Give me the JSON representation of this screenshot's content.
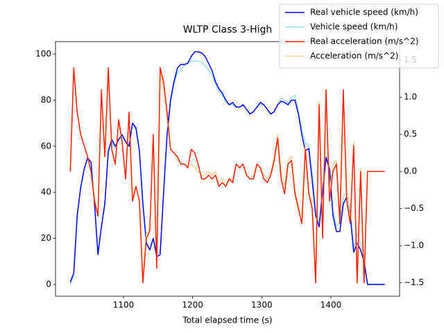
{
  "chart_data": {
    "type": "line",
    "title": "WLTP Class 3-High",
    "xlabel": "Total elapsed time (s)",
    "x": [
      1023,
      1028,
      1033,
      1038,
      1043,
      1048,
      1053,
      1058,
      1063,
      1068,
      1073,
      1078,
      1083,
      1088,
      1093,
      1098,
      1103,
      1108,
      1113,
      1118,
      1123,
      1128,
      1133,
      1138,
      1143,
      1148,
      1153,
      1158,
      1163,
      1168,
      1173,
      1178,
      1183,
      1188,
      1193,
      1198,
      1203,
      1208,
      1213,
      1218,
      1223,
      1228,
      1233,
      1238,
      1243,
      1248,
      1253,
      1258,
      1263,
      1268,
      1273,
      1278,
      1283,
      1288,
      1293,
      1298,
      1303,
      1308,
      1313,
      1318,
      1323,
      1328,
      1333,
      1338,
      1343,
      1348,
      1353,
      1358,
      1363,
      1368,
      1373,
      1378,
      1383,
      1388,
      1393,
      1398,
      1403,
      1408,
      1413,
      1418,
      1423,
      1428,
      1433,
      1438,
      1443,
      1448,
      1453,
      1458,
      1463,
      1468,
      1473,
      1478
    ],
    "xlim": [
      1001.6,
      1499.4
    ],
    "xticks": [
      1100,
      1200,
      1300,
      1400
    ],
    "ylim": [
      -5.1,
      105.4
    ],
    "yticks": [
      0,
      20,
      40,
      60,
      80,
      100
    ],
    "y2lim": [
      -1.68,
      1.75
    ],
    "y2ticks": [
      {
        "value": -1.5,
        "label": "−1.5"
      },
      {
        "value": -1,
        "label": "−1.0"
      },
      {
        "value": -0.5,
        "label": "−0.5"
      },
      {
        "value": 0,
        "label": "0.0"
      },
      0.5,
      {
        "value": 1,
        "label": "1.0"
      },
      1.5
    ],
    "legend": "upper right",
    "series": [
      {
        "name": "Real vehicle speed (km/h)",
        "color": "#0000ff",
        "values": [
          1,
          5,
          30,
          42,
          50,
          55,
          53,
          35,
          13,
          25,
          35,
          58,
          63,
          60,
          63,
          65,
          62,
          60,
          70,
          68,
          58,
          35,
          18,
          15,
          20,
          12,
          13,
          40,
          65,
          80,
          88,
          94,
          95.5,
          95.5,
          96,
          99,
          101,
          101,
          100.5,
          99,
          96,
          93,
          88,
          85,
          83,
          80,
          78,
          79,
          77,
          77,
          78,
          76,
          74,
          75,
          77,
          79,
          78,
          76,
          74,
          75,
          78,
          79.5,
          79,
          78,
          80,
          80,
          74,
          65,
          58,
          59,
          45,
          30,
          25,
          40,
          55,
          50,
          30,
          23,
          23,
          35,
          38,
          30,
          14,
          18,
          15,
          10,
          0,
          0,
          0,
          0,
          0,
          0
        ]
      },
      {
        "name": "Vehicle speed (km/h)",
        "color": "#94e2e8",
        "values": [
          0,
          4,
          29,
          42,
          50,
          55,
          53,
          36,
          14,
          25,
          36,
          57,
          62,
          59,
          62,
          64,
          62,
          61,
          70,
          67,
          58,
          36,
          19,
          15,
          20,
          13,
          14,
          40,
          64,
          79,
          87,
          92,
          93,
          95,
          96,
          97,
          97,
          97,
          96.5,
          95,
          93,
          91,
          87,
          84,
          82,
          79,
          78,
          78,
          77,
          77,
          78,
          76,
          74,
          75,
          77,
          78,
          78,
          76,
          74,
          75,
          78,
          81,
          80,
          79,
          81,
          82,
          75,
          67,
          62,
          60,
          48,
          32,
          27,
          42,
          56,
          52,
          32,
          25,
          27,
          38,
          40,
          32,
          16,
          22,
          18,
          12,
          0,
          0,
          0,
          0,
          0,
          0
        ]
      },
      {
        "name": "Real acceleration (m/s^2)",
        "color": "#ff2000",
        "axis": "y2",
        "values": [
          0,
          1.4,
          0.8,
          0.5,
          0.35,
          0.2,
          0,
          -0.4,
          -0.6,
          1.1,
          0.2,
          1.4,
          0.3,
          0.1,
          0.7,
          0.4,
          -0.1,
          0.8,
          -0.4,
          -0.2,
          -0.4,
          -1.5,
          -0.9,
          -0.8,
          0.5,
          -1.3,
          1.4,
          1.2,
          0.8,
          0.3,
          0.25,
          0.2,
          0.1,
          0.1,
          0.05,
          0.3,
          0.25,
          0.1,
          -0.1,
          -0.1,
          -0.05,
          -0.1,
          -0.05,
          -0.2,
          -0.15,
          -0.2,
          -0.1,
          -0.15,
          0.1,
          0.05,
          0.1,
          -0.05,
          -0.1,
          -0.1,
          0.1,
          0.05,
          -0.1,
          -0.15,
          -0.05,
          0.15,
          0.45,
          -0.1,
          -0.3,
          0.1,
          0.15,
          -0.3,
          -0.5,
          -0.7,
          0.3,
          -0.3,
          -0.5,
          -1.5,
          0.9,
          -0.9,
          1.1,
          -0.4,
          0,
          0.1,
          -0.7,
          1.1,
          -0.4,
          -0.7,
          0.35,
          -1.5,
          0,
          -1.5,
          0,
          0,
          0,
          0,
          0,
          0
        ]
      },
      {
        "name": "Acceleration (m/s^2)",
        "color": "#ffd49a",
        "axis": "y2",
        "values": [
          0,
          1.35,
          0.8,
          0.5,
          0.35,
          0.2,
          0,
          -0.35,
          -0.55,
          1.05,
          0.2,
          1.35,
          0.3,
          0.1,
          0.65,
          0.4,
          -0.1,
          0.75,
          -0.35,
          -0.2,
          -0.4,
          -1.45,
          -0.85,
          -0.75,
          0.45,
          -1.25,
          1.35,
          1.15,
          0.75,
          0.3,
          0.25,
          0.15,
          0.1,
          0.1,
          0.05,
          0.1,
          0.05,
          0,
          -0.05,
          -0.05,
          0,
          -0.05,
          0,
          -0.15,
          -0.1,
          -0.15,
          -0.1,
          -0.1,
          0.1,
          0.05,
          0.1,
          -0.05,
          -0.1,
          -0.05,
          0.1,
          0.05,
          -0.05,
          -0.1,
          0,
          0.2,
          0.5,
          0,
          -0.2,
          0.15,
          0.2,
          -0.25,
          -0.45,
          -0.6,
          0.35,
          -0.25,
          -0.45,
          -1.4,
          0.95,
          -0.85,
          1.1,
          -0.3,
          0.1,
          0.15,
          -0.6,
          1.05,
          -0.3,
          -0.65,
          0.4,
          -1.4,
          0.05,
          -1.45,
          0,
          0,
          0,
          0,
          0,
          0
        ]
      }
    ]
  }
}
